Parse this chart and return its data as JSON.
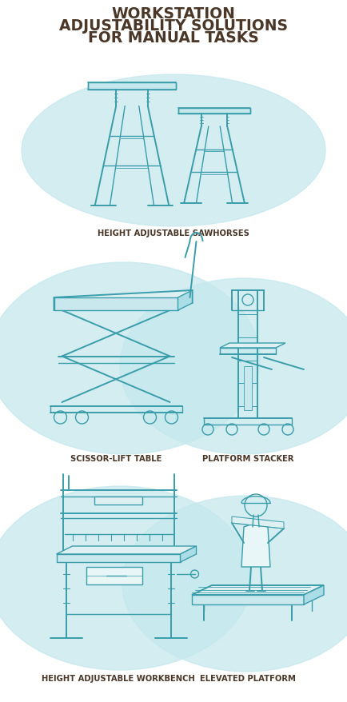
{
  "title_line1": "WORKSTATION",
  "title_line2": "ADJUSTABILITY SOLUTIONS",
  "title_line3": "FOR MANUAL TASKS",
  "title_color": "#4a3728",
  "title_fontsize": 13.5,
  "background_color": "#ffffff",
  "bubble_color": "#c5e8ed",
  "bubble_alpha": 0.75,
  "teal_color": "#3a9daa",
  "teal_dark": "#2a7d8a",
  "label_color": "#4a3728",
  "label_fontsize": 7.2,
  "fig_w": 4.34,
  "fig_h": 8.79,
  "dpi": 100
}
